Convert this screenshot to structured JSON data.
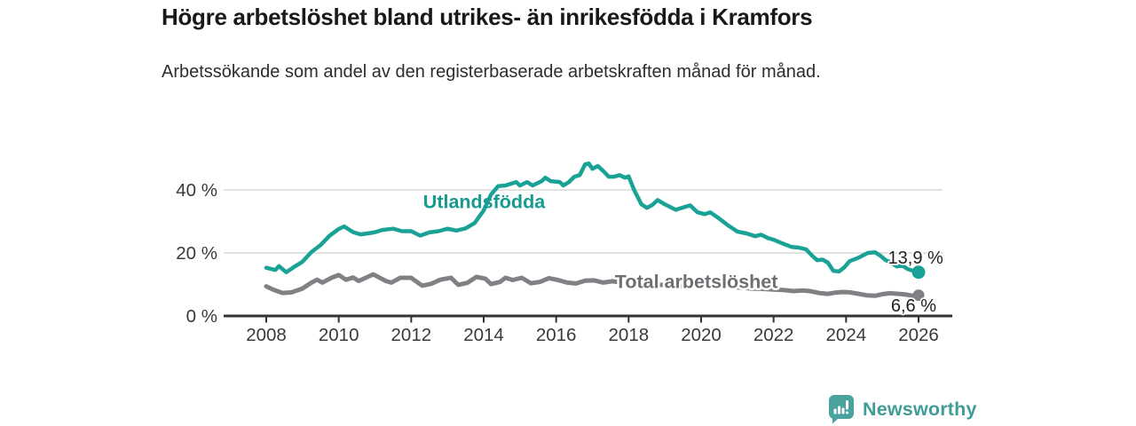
{
  "header": {
    "title": "Högre arbetslöshet bland utrikes- än inrikesfödda i Kramfors",
    "subtitle": "Arbetssökande som andel av den registerbaserade arbetskraften månad för månad."
  },
  "branding": {
    "logo_text": "Newsworthy",
    "icon_color": "#4aa29c",
    "text_color": "#3e9d98"
  },
  "chart_data": {
    "type": "line",
    "title": "Högre arbetslöshet bland utrikes- än inrikesfödda i Kramfors",
    "subtitle": "Arbetssökande som andel av den registerbaserade arbetskraften månad för månad.",
    "grid": "horizontal",
    "legend_position": "inline-labels",
    "x_axis": {
      "ticks": [
        2008,
        2010,
        2012,
        2014,
        2016,
        2018,
        2020,
        2022,
        2024,
        2026
      ],
      "range": [
        2007.8,
        2026.9
      ]
    },
    "y_axis": {
      "unit": "%",
      "ticks": [
        0,
        20,
        40
      ],
      "labels": [
        "0 %",
        "20 %",
        "40 %"
      ],
      "range": [
        0,
        52
      ]
    },
    "series": [
      {
        "name": "Utlandsfödda",
        "slug": "utlandsfodda",
        "color": "#1aa296",
        "label_color": "#169b90",
        "line_width": 4.5,
        "end_dot_radius": 7.5,
        "label": {
          "text": "Utlandsfödda",
          "x": 2012.33,
          "y": 34.2,
          "anchor": "start",
          "halo": false
        },
        "end_label": {
          "text": "13,9 %",
          "x": 2026.68,
          "y": 16.6,
          "anchor": "end"
        },
        "end_value": 13.9,
        "points": [
          [
            2008.0,
            15.3
          ],
          [
            2008.25,
            14.6
          ],
          [
            2008.35,
            15.8
          ],
          [
            2008.55,
            13.9
          ],
          [
            2008.8,
            15.8
          ],
          [
            2009.0,
            17.2
          ],
          [
            2009.25,
            20.3
          ],
          [
            2009.5,
            22.5
          ],
          [
            2009.75,
            25.5
          ],
          [
            2010.0,
            27.6
          ],
          [
            2010.15,
            28.4
          ],
          [
            2010.4,
            26.6
          ],
          [
            2010.6,
            25.9
          ],
          [
            2010.8,
            26.2
          ],
          [
            2011.0,
            26.6
          ],
          [
            2011.2,
            27.3
          ],
          [
            2011.5,
            27.7
          ],
          [
            2011.75,
            26.9
          ],
          [
            2012.0,
            26.9
          ],
          [
            2012.25,
            25.5
          ],
          [
            2012.5,
            26.5
          ],
          [
            2012.75,
            26.9
          ],
          [
            2013.0,
            27.7
          ],
          [
            2013.25,
            27.1
          ],
          [
            2013.5,
            27.8
          ],
          [
            2013.75,
            29.5
          ],
          [
            2014.0,
            33.5
          ],
          [
            2014.2,
            38.5
          ],
          [
            2014.4,
            41.2
          ],
          [
            2014.6,
            41.4
          ],
          [
            2014.9,
            42.5
          ],
          [
            2015.0,
            41.4
          ],
          [
            2015.2,
            42.5
          ],
          [
            2015.35,
            41.4
          ],
          [
            2015.6,
            42.8
          ],
          [
            2015.7,
            43.9
          ],
          [
            2015.85,
            42.8
          ],
          [
            2016.1,
            42.5
          ],
          [
            2016.2,
            41.4
          ],
          [
            2016.35,
            42.5
          ],
          [
            2016.5,
            44.2
          ],
          [
            2016.65,
            44.7
          ],
          [
            2016.8,
            48.1
          ],
          [
            2016.9,
            48.4
          ],
          [
            2017.0,
            46.7
          ],
          [
            2017.15,
            47.6
          ],
          [
            2017.3,
            46.0
          ],
          [
            2017.45,
            44.2
          ],
          [
            2017.6,
            44.2
          ],
          [
            2017.75,
            44.7
          ],
          [
            2017.9,
            43.9
          ],
          [
            2018.0,
            44.3
          ],
          [
            2018.15,
            40.0
          ],
          [
            2018.35,
            35.5
          ],
          [
            2018.5,
            34.3
          ],
          [
            2018.65,
            35.2
          ],
          [
            2018.8,
            36.8
          ],
          [
            2019.0,
            35.4
          ],
          [
            2019.3,
            33.7
          ],
          [
            2019.55,
            34.6
          ],
          [
            2019.7,
            35.1
          ],
          [
            2019.9,
            32.9
          ],
          [
            2020.1,
            32.3
          ],
          [
            2020.25,
            32.9
          ],
          [
            2020.5,
            30.9
          ],
          [
            2020.75,
            28.7
          ],
          [
            2021.0,
            26.8
          ],
          [
            2021.25,
            26.2
          ],
          [
            2021.5,
            25.3
          ],
          [
            2021.65,
            25.8
          ],
          [
            2021.85,
            24.7
          ],
          [
            2022.0,
            24.2
          ],
          [
            2022.25,
            23.0
          ],
          [
            2022.5,
            21.9
          ],
          [
            2022.7,
            21.7
          ],
          [
            2022.9,
            21.1
          ],
          [
            2023.05,
            19.3
          ],
          [
            2023.2,
            17.7
          ],
          [
            2023.35,
            17.9
          ],
          [
            2023.5,
            16.9
          ],
          [
            2023.65,
            14.3
          ],
          [
            2023.8,
            14.1
          ],
          [
            2023.95,
            15.4
          ],
          [
            2024.1,
            17.4
          ],
          [
            2024.35,
            18.5
          ],
          [
            2024.6,
            20.0
          ],
          [
            2024.8,
            20.2
          ],
          [
            2024.95,
            19.1
          ],
          [
            2025.1,
            17.7
          ],
          [
            2025.25,
            16.9
          ],
          [
            2025.4,
            15.7
          ],
          [
            2025.55,
            16.0
          ],
          [
            2025.7,
            14.9
          ],
          [
            2025.85,
            14.3
          ],
          [
            2026.0,
            13.9
          ]
        ]
      },
      {
        "name": "Total arbetslöshet",
        "slug": "total",
        "color": "#808184",
        "label_color": "#6e6f73",
        "line_width": 5,
        "end_dot_radius": 6.5,
        "label": {
          "text": "Total arbetslöshet",
          "x": 2017.62,
          "y": 8.9,
          "anchor": "start",
          "halo": true
        },
        "end_label": {
          "text": "6,6 %",
          "x": 2026.49,
          "y": 1.4,
          "anchor": "end"
        },
        "end_value": 6.6,
        "points": [
          [
            2008.0,
            9.4
          ],
          [
            2008.2,
            8.3
          ],
          [
            2008.45,
            7.3
          ],
          [
            2008.7,
            7.5
          ],
          [
            2009.0,
            8.7
          ],
          [
            2009.25,
            10.6
          ],
          [
            2009.4,
            11.5
          ],
          [
            2009.55,
            10.6
          ],
          [
            2009.8,
            12.1
          ],
          [
            2010.0,
            13.0
          ],
          [
            2010.2,
            11.5
          ],
          [
            2010.4,
            12.2
          ],
          [
            2010.55,
            11.1
          ],
          [
            2010.95,
            13.2
          ],
          [
            2011.3,
            11.1
          ],
          [
            2011.45,
            10.6
          ],
          [
            2011.7,
            12.1
          ],
          [
            2012.0,
            12.1
          ],
          [
            2012.3,
            9.6
          ],
          [
            2012.55,
            10.2
          ],
          [
            2012.8,
            11.5
          ],
          [
            2013.1,
            12.1
          ],
          [
            2013.3,
            9.9
          ],
          [
            2013.55,
            10.5
          ],
          [
            2013.8,
            12.4
          ],
          [
            2014.05,
            11.8
          ],
          [
            2014.2,
            10.1
          ],
          [
            2014.45,
            10.8
          ],
          [
            2014.6,
            12.1
          ],
          [
            2014.8,
            11.4
          ],
          [
            2015.05,
            12.1
          ],
          [
            2015.3,
            10.4
          ],
          [
            2015.55,
            10.8
          ],
          [
            2015.8,
            12.0
          ],
          [
            2016.05,
            11.4
          ],
          [
            2016.3,
            10.6
          ],
          [
            2016.55,
            10.3
          ],
          [
            2016.8,
            11.2
          ],
          [
            2017.05,
            11.3
          ],
          [
            2017.3,
            10.6
          ],
          [
            2017.55,
            11.0
          ],
          [
            2017.8,
            10.6
          ],
          [
            2018.1,
            10.4
          ],
          [
            2018.4,
            9.9
          ],
          [
            2018.7,
            9.8
          ],
          [
            2019.0,
            9.9
          ],
          [
            2019.3,
            9.5
          ],
          [
            2019.6,
            9.3
          ],
          [
            2019.9,
            9.6
          ],
          [
            2020.2,
            10.0
          ],
          [
            2020.5,
            9.7
          ],
          [
            2020.8,
            9.3
          ],
          [
            2021.1,
            9.0
          ],
          [
            2021.4,
            8.7
          ],
          [
            2021.7,
            8.6
          ],
          [
            2022.0,
            8.4
          ],
          [
            2022.3,
            8.2
          ],
          [
            2022.55,
            7.9
          ],
          [
            2022.8,
            8.1
          ],
          [
            2023.0,
            7.9
          ],
          [
            2023.25,
            7.3
          ],
          [
            2023.5,
            7.0
          ],
          [
            2023.7,
            7.4
          ],
          [
            2023.9,
            7.6
          ],
          [
            2024.1,
            7.5
          ],
          [
            2024.35,
            7.0
          ],
          [
            2024.6,
            6.5
          ],
          [
            2024.8,
            6.4
          ],
          [
            2025.0,
            6.9
          ],
          [
            2025.2,
            7.2
          ],
          [
            2025.45,
            7.0
          ],
          [
            2025.65,
            6.8
          ],
          [
            2025.85,
            6.4
          ],
          [
            2026.0,
            6.6
          ]
        ]
      }
    ]
  }
}
